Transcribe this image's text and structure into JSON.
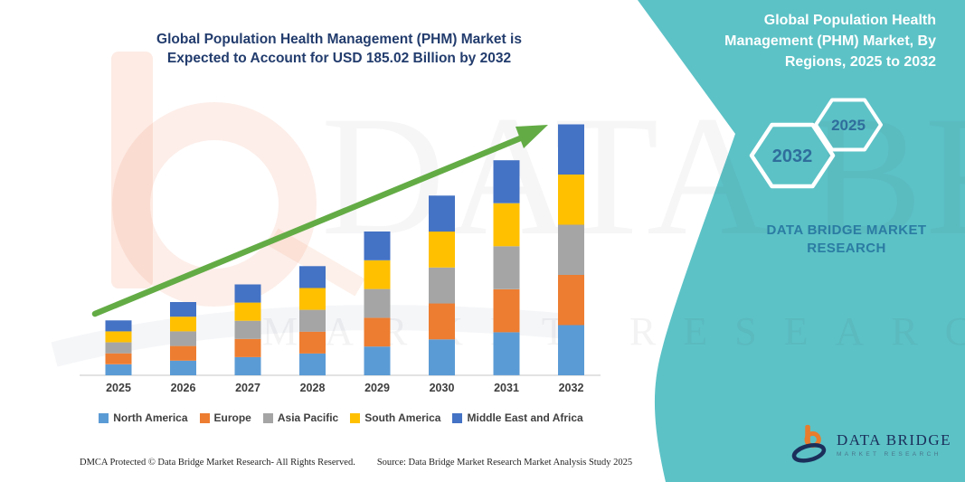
{
  "header": {
    "main_title_line1": "Global Population Health Management (PHM) Market is",
    "main_title_line2": "Expected to Account for USD 185.02 Billion by 2032"
  },
  "side_panel": {
    "bg_color": "#5CC2C6",
    "title_lines": [
      "Global Population Health",
      "Management (PHM) Market, By",
      "Regions, 2025 to 2032"
    ],
    "hexagons": [
      {
        "label": "2032"
      },
      {
        "label": "2025"
      }
    ],
    "brand_text": "DATA BRIDGE MARKET RESEARCH"
  },
  "chart_data": {
    "type": "bar",
    "stacked": true,
    "title": "Global Population Health Management (PHM) Market, By Regions, 2025 to 2032",
    "unit": "USD Billion",
    "highlight_value": "USD 185.02 Billion by 2032",
    "categories": [
      "2025",
      "2026",
      "2027",
      "2028",
      "2029",
      "2030",
      "2031",
      "2032"
    ],
    "series": [
      {
        "name": "North America",
        "color": "#5B9BD5",
        "values": [
          8.1,
          10.8,
          13.4,
          16.1,
          21.2,
          26.5,
          31.7,
          37.0
        ]
      },
      {
        "name": "Europe",
        "color": "#ED7D31",
        "values": [
          8.1,
          10.8,
          13.4,
          16.1,
          21.2,
          26.5,
          31.7,
          37.0
        ]
      },
      {
        "name": "Asia Pacific",
        "color": "#A5A5A5",
        "values": [
          8.1,
          10.8,
          13.4,
          16.1,
          21.2,
          26.5,
          31.7,
          37.0
        ]
      },
      {
        "name": "South America",
        "color": "#FFC000",
        "values": [
          8.1,
          10.8,
          13.4,
          16.1,
          21.2,
          26.5,
          31.7,
          37.0
        ]
      },
      {
        "name": "Middle East and Africa",
        "color": "#4472C4",
        "values": [
          8.1,
          10.8,
          13.4,
          16.1,
          21.2,
          26.5,
          31.7,
          37.0
        ]
      }
    ],
    "totals_estimated": [
      40.5,
      54.0,
      67.0,
      80.5,
      106.0,
      132.5,
      158.5,
      185.02
    ],
    "ylim": [
      0,
      190
    ],
    "grid": false,
    "legend_position": "bottom",
    "axis_line_color": "#DADADA",
    "trend_arrow_color": "#63AC45"
  },
  "watermarks": {
    "big_text": "DATA BRIDGE",
    "row_text": "MARKET RESEARCH"
  },
  "footer": {
    "dmca_text": "DMCA Protected © Data Bridge Market Research-  All Rights Reserved.",
    "source_text": "Source: Data Bridge Market Research  Market Analysis Study 2025"
  },
  "logo": {
    "title": "DATA BRIDGE",
    "subtitle": "MARKET RESEARCH"
  },
  "colors": {
    "title_text": "#223C6D",
    "panel_teal": "#5CC2C6",
    "hex_label": "#2F6E9C",
    "brand_text": "#2B7CA3",
    "arrow_green": "#63AC45",
    "logo_navy": "#1B2F5B",
    "logo_orange": "#E87D2D"
  }
}
